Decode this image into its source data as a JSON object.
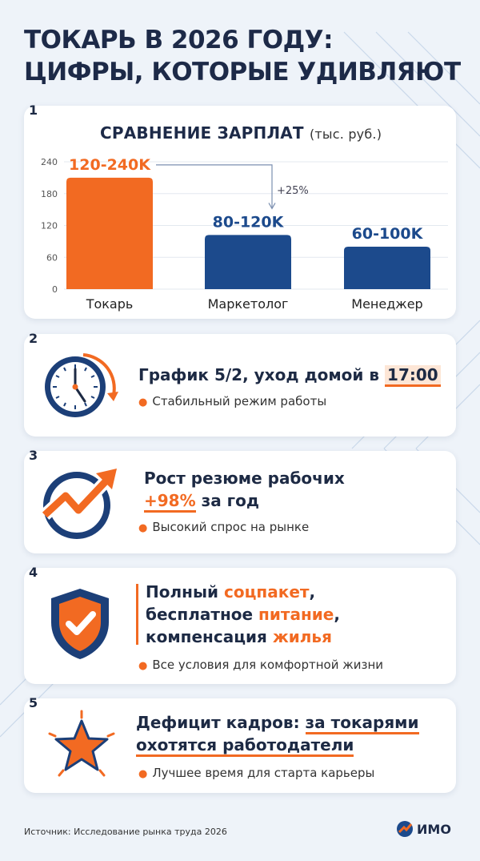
{
  "title_line1": "ТОКАРЬ В 2026 ГОДУ:",
  "title_line2": "ЦИФРЫ, КОТОРЫЕ УДИВЛЯЮТ",
  "cards": [
    {
      "num": "1"
    },
    {
      "num": "2",
      "headline_pre": "График 5/2, уход домой в ",
      "headline_hl": "17:00",
      "bullet": "Стабильный режим работы"
    },
    {
      "num": "3",
      "headline_l1": "Рост резюме рабочих",
      "headline_hl": "+98%",
      "headline_post": " за год",
      "bullet": "Высокий спрос на рынке"
    },
    {
      "num": "4",
      "l1_pre": "Полный ",
      "l1_hl": "соцпакет",
      "l1_post": ",",
      "l2_pre": "бесплатное ",
      "l2_hl": "питание",
      "l2_post": ",",
      "l3_pre": "компенсация ",
      "l3_hl": "жилья",
      "bullet": "Все условия для комфортной жизни"
    },
    {
      "num": "5",
      "l1_pre": "Дефицит кадров: ",
      "l1_ul": "за токарями",
      "l2_ul": "охотятся работодатели",
      "bullet": "Лучшее время для старта карьеры"
    }
  ],
  "chart_data": {
    "type": "bar",
    "title": "СРАВНЕНИЕ ЗАРПЛАТ",
    "unit": "(тыс. руб.)",
    "categories": [
      "Токарь",
      "Маркетолог",
      "Менеджер"
    ],
    "values": [
      210,
      102,
      80
    ],
    "data_labels": [
      "120-240K",
      "80-120K",
      "60-100K"
    ],
    "colors": [
      "#f26a22",
      "#1c4a8c",
      "#1c4a8c"
    ],
    "yticks": [
      0,
      60,
      120,
      180,
      240
    ],
    "ylim": [
      0,
      240
    ],
    "annotation": "+25%",
    "grid": true
  },
  "footer": {
    "source": "Источник: Исследование рынка труда 2026",
    "logo": "ИМО"
  },
  "colors": {
    "accent": "#f26a22",
    "navy": "#1c4a8c",
    "dark": "#1d2a44"
  },
  "icons": [
    "clock-icon",
    "growth-arrow-icon",
    "shield-check-icon",
    "star-icon"
  ]
}
